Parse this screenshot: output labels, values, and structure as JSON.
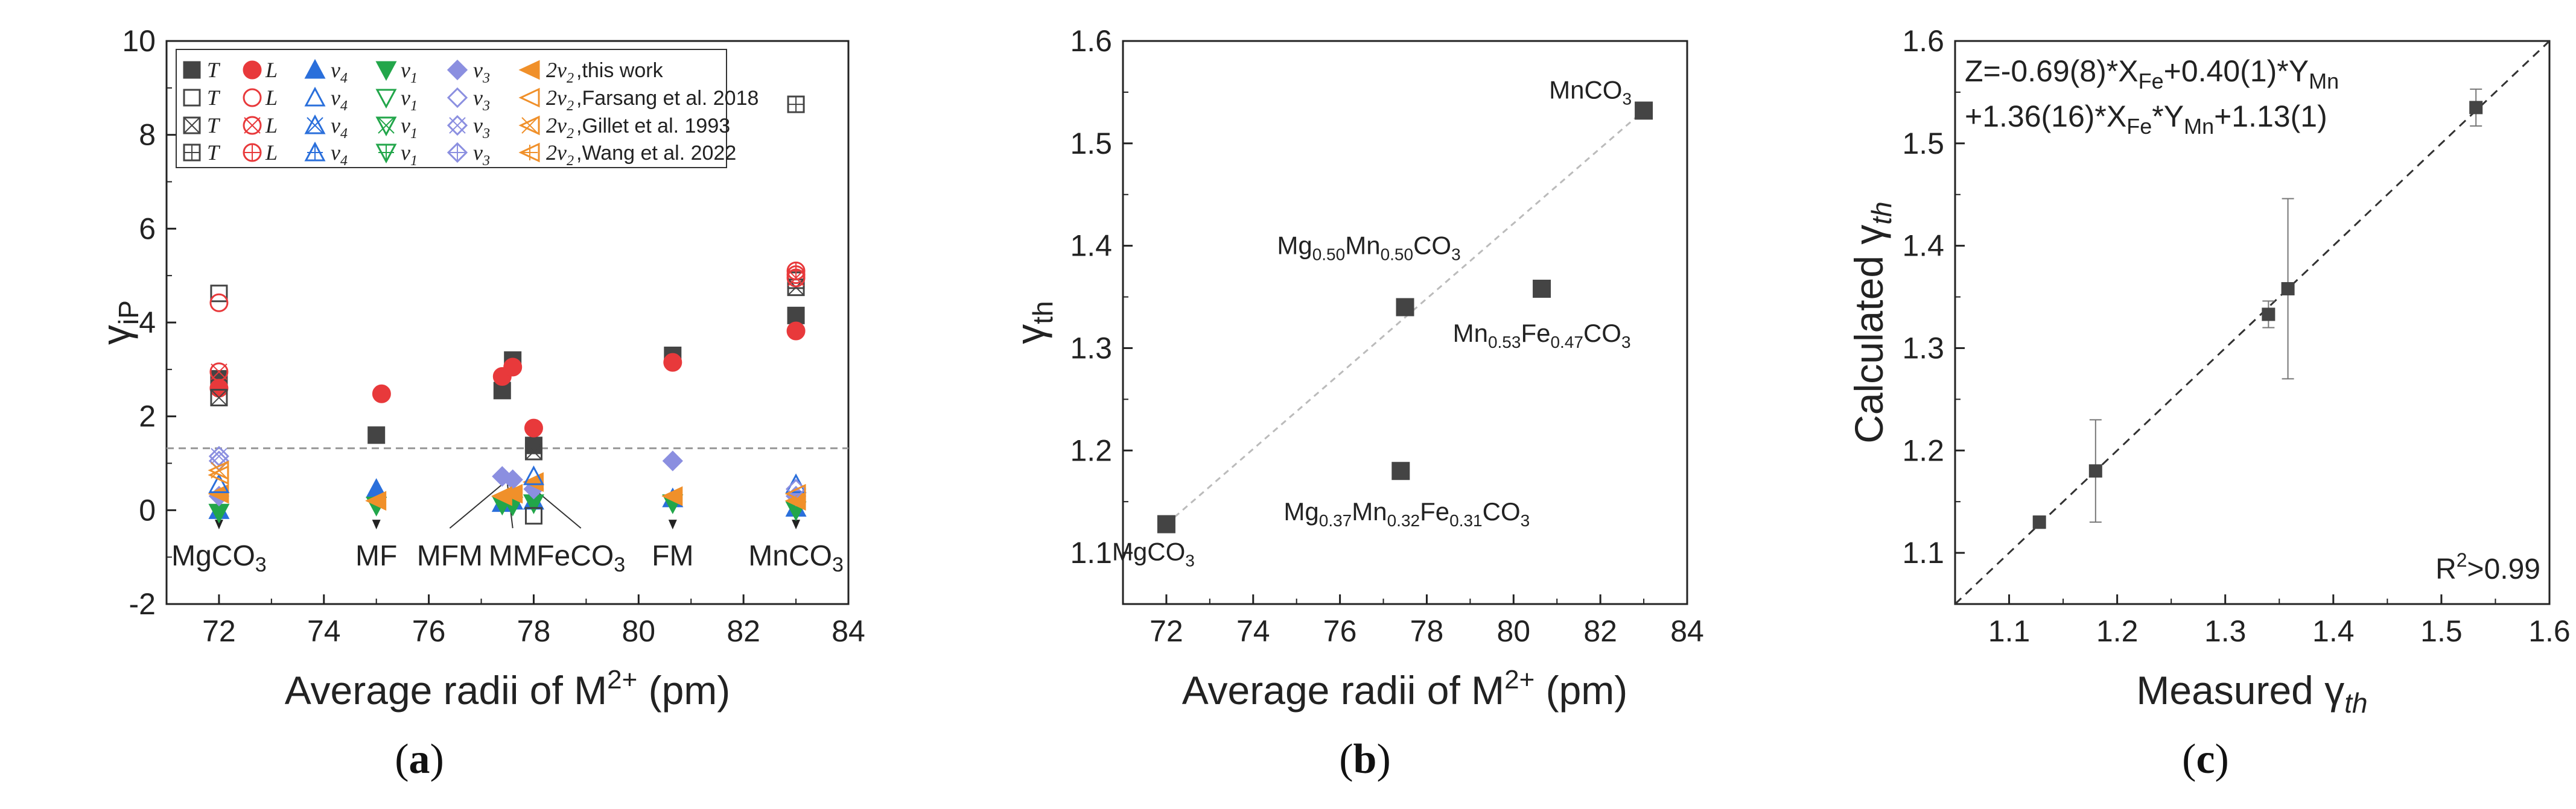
{
  "chart_data": [
    {
      "id": "a",
      "type": "scatter",
      "panel_label": "(a)",
      "xlabel": "Average radii of M2+ (pm)",
      "ylabel": "γiP",
      "xlim": [
        71,
        84
      ],
      "ylim": [
        -2,
        10
      ],
      "xticks": [
        "72",
        "74",
        "76",
        "78",
        "80",
        "82",
        "84"
      ],
      "yticks": [
        "-2",
        "0",
        "2",
        "4",
        "6",
        "8",
        "10"
      ],
      "reference_line_y": 1.32,
      "legend": {
        "rows": [
          "this work",
          "Farsang et al. 2018",
          "Gillet et al. 1993",
          "Wang et al. 2022"
        ],
        "row_labels": [
          ",this work",
          ",Farsang et al. 2018",
          ",Gillet et al. 1993",
          ",Wang et al. 2022"
        ],
        "columns": [
          "T",
          "L",
          "v4",
          "v1",
          "v3",
          "2v2"
        ]
      },
      "colors": {
        "T": "#444444",
        "L": "#e8393b",
        "v4": "#2a6fdb",
        "v1": "#22a64a",
        "v3": "#8b8fe0",
        "2v2": "#f0902a"
      },
      "series": [
        {
          "name": "T",
          "ref": "this work",
          "points": [
            [
              72,
              2.8
            ],
            [
              75,
              1.6
            ],
            [
              77.4,
              2.55
            ],
            [
              77.6,
              3.2
            ],
            [
              78,
              1.38
            ],
            [
              80.65,
              3.3
            ],
            [
              83,
              4.15
            ]
          ]
        },
        {
          "name": "L",
          "ref": "this work",
          "points": [
            [
              72,
              2.6
            ],
            [
              75.1,
              2.48
            ],
            [
              77.4,
              2.85
            ],
            [
              77.6,
              3.05
            ],
            [
              78,
              1.75
            ],
            [
              80.65,
              3.15
            ],
            [
              83,
              3.82
            ]
          ]
        },
        {
          "name": "v4",
          "ref": "this work",
          "points": [
            [
              72,
              0.0
            ],
            [
              75,
              0.45
            ],
            [
              77.4,
              0.15
            ],
            [
              77.6,
              0.2
            ],
            [
              78,
              0.2
            ],
            [
              80.65,
              0.25
            ],
            [
              83,
              0.05
            ]
          ]
        },
        {
          "name": "v1",
          "ref": "this work",
          "points": [
            [
              72,
              -0.05
            ],
            [
              75,
              0.1
            ],
            [
              77.4,
              0.12
            ],
            [
              77.6,
              0.1
            ],
            [
              78,
              0.15
            ],
            [
              80.65,
              0.15
            ],
            [
              83,
              0.0
            ]
          ]
        },
        {
          "name": "v3",
          "ref": "this work",
          "points": [
            [
              72,
              0.3
            ],
            [
              77.4,
              0.72
            ],
            [
              77.6,
              0.65
            ],
            [
              78,
              0.45
            ],
            [
              80.65,
              1.05
            ],
            [
              83,
              0.3
            ]
          ]
        },
        {
          "name": "2v2",
          "ref": "this work",
          "points": [
            [
              72,
              0.35
            ],
            [
              75,
              0.2
            ],
            [
              77.4,
              0.3
            ],
            [
              77.6,
              0.35
            ],
            [
              78,
              0.6
            ],
            [
              80.65,
              0.3
            ],
            [
              83,
              0.2
            ]
          ]
        },
        {
          "name": "T",
          "ref": "Farsang et al. 2018",
          "points": [
            [
              72,
              4.62
            ],
            [
              78,
              -0.12
            ],
            [
              83,
              4.9
            ]
          ]
        },
        {
          "name": "L",
          "ref": "Farsang et al. 2018",
          "points": [
            [
              72,
              4.42
            ],
            [
              83,
              5.02
            ]
          ]
        },
        {
          "name": "v4",
          "ref": "Farsang et al. 2018",
          "points": [
            [
              72,
              0.55
            ],
            [
              78,
              0.72
            ],
            [
              83,
              0.55
            ]
          ]
        },
        {
          "name": "v3",
          "ref": "Farsang et al. 2018",
          "points": [
            [
              72,
              1.05
            ],
            [
              83,
              0.45
            ]
          ]
        },
        {
          "name": "2v2",
          "ref": "Farsang et al. 2018",
          "points": [
            [
              72,
              0.75
            ],
            [
              83,
              0.35
            ]
          ]
        },
        {
          "name": "T",
          "ref": "Gillet et al. 1993",
          "points": [
            [
              72,
              2.4
            ],
            [
              78,
              1.25
            ],
            [
              83,
              4.75
            ]
          ]
        },
        {
          "name": "L",
          "ref": "Gillet et al. 1993",
          "points": [
            [
              72,
              2.95
            ],
            [
              83,
              4.95
            ]
          ]
        },
        {
          "name": "v3",
          "ref": "Gillet et al. 1993",
          "points": [
            [
              72,
              1.15
            ]
          ]
        },
        {
          "name": "2v2",
          "ref": "Gillet et al. 1993",
          "points": [
            [
              72,
              0.85
            ]
          ]
        },
        {
          "name": "T",
          "ref": "Wang et al. 2022",
          "points": [
            [
              83,
              8.65
            ]
          ]
        },
        {
          "name": "L",
          "ref": "Wang et al. 2022",
          "points": [
            [
              83,
              5.1
            ]
          ]
        }
      ],
      "annotations": [
        {
          "text": "MgCO3",
          "x": 72,
          "arrow_to_y": -0.3,
          "text_y": -1.0
        },
        {
          "text": "MF",
          "x": 75,
          "arrow_to_y": -0.3,
          "text_y": -1.0
        },
        {
          "text": "MFM",
          "x": 76.4,
          "arrow_to_y": 0.55,
          "text_y": -1.0
        },
        {
          "text": "MM",
          "x": 77.6,
          "arrow_to_y": 0.55,
          "text_y": -1.0
        },
        {
          "text": "FeCO3",
          "x": 78.9,
          "arrow_to_y": 0.55,
          "text_y": -1.0
        },
        {
          "text": "FM",
          "x": 80.65,
          "arrow_to_y": -0.3,
          "text_y": -1.0
        },
        {
          "text": "MnCO3",
          "x": 83,
          "arrow_to_y": -0.3,
          "text_y": -1.0
        }
      ]
    },
    {
      "id": "b",
      "type": "scatter",
      "panel_label": "(b)",
      "xlabel": "Average radii of M2+ (pm)",
      "ylabel": "γth",
      "xlim": [
        71,
        84
      ],
      "ylim": [
        1.05,
        1.6
      ],
      "xticks": [
        "72",
        "74",
        "76",
        "78",
        "80",
        "82",
        "84"
      ],
      "yticks": [
        "1.1",
        "1.2",
        "1.3",
        "1.4",
        "1.5",
        "1.6"
      ],
      "points": [
        {
          "x": 72.0,
          "y": 1.128,
          "label": "MgCO3"
        },
        {
          "x": 77.4,
          "y": 1.18,
          "label": "Mg0.37Mn0.32Fe0.31CO3"
        },
        {
          "x": 77.5,
          "y": 1.34,
          "label": "Mg0.50Mn0.50CO3"
        },
        {
          "x": 80.65,
          "y": 1.358,
          "label": "Mn0.53Fe0.47CO3"
        },
        {
          "x": 83.0,
          "y": 1.532,
          "label": "MnCO3"
        }
      ],
      "fit_line": [
        [
          72.0,
          1.128
        ],
        [
          83.0,
          1.532
        ]
      ]
    },
    {
      "id": "c",
      "type": "scatter",
      "panel_label": "(c)",
      "xlabel": "Measured γth",
      "ylabel": "Calculated γth",
      "xlim": [
        1.05,
        1.6
      ],
      "ylim": [
        1.05,
        1.6
      ],
      "xticks": [
        "1.1",
        "1.2",
        "1.3",
        "1.4",
        "1.5",
        "1.6"
      ],
      "yticks": [
        "1.1",
        "1.2",
        "1.3",
        "1.4",
        "1.5",
        "1.6"
      ],
      "points": [
        {
          "x": 1.128,
          "y": 1.13,
          "err": 0.006
        },
        {
          "x": 1.18,
          "y": 1.18,
          "err": 0.05
        },
        {
          "x": 1.34,
          "y": 1.333,
          "err": 0.013
        },
        {
          "x": 1.358,
          "y": 1.358,
          "err": 0.088
        },
        {
          "x": 1.532,
          "y": 1.535,
          "err": 0.018
        }
      ],
      "formula_line1": "Z=-0.69(8)*XFe+0.40(1)*YMn",
      "formula_line2": "+1.36(16)*XFe*YMn+1.13(1)",
      "r2": "R2>0.99"
    }
  ]
}
